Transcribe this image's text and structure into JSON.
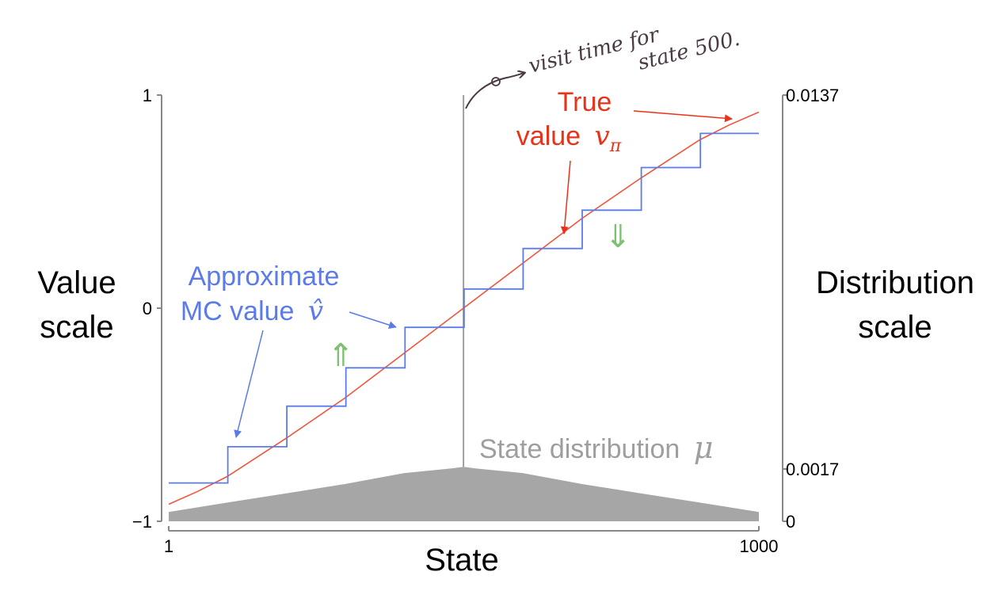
{
  "chart_data": {
    "type": "line",
    "title": "",
    "xlabel": "State",
    "ylabel": "Value scale",
    "y2label": "Distribution scale",
    "xlim": [
      1,
      1000
    ],
    "ylim": [
      -1,
      1
    ],
    "y2lim": [
      0,
      0.0137
    ],
    "x_ticks": [
      "1",
      "1000"
    ],
    "y_ticks": [
      "1",
      "0",
      "−1"
    ],
    "y2_ticks": [
      "0.0137",
      "0.0017",
      "0"
    ],
    "grid": false,
    "legend": "none",
    "series": [
      {
        "name": "True value vπ",
        "color": "#f0553c",
        "kind": "smooth line",
        "points": [
          [
            1,
            -0.92
          ],
          [
            50,
            -0.86
          ],
          [
            100,
            -0.79
          ],
          [
            200,
            -0.61
          ],
          [
            300,
            -0.42
          ],
          [
            400,
            -0.21
          ],
          [
            500,
            0.0
          ],
          [
            600,
            0.21
          ],
          [
            700,
            0.42
          ],
          [
            800,
            0.61
          ],
          [
            900,
            0.79
          ],
          [
            950,
            0.86
          ],
          [
            1000,
            0.92
          ]
        ]
      },
      {
        "name": "Approximate MC value ŵ",
        "color": "#5b7bea",
        "kind": "step (aggregated groups of 100 states)",
        "group_starts": [
          1,
          101,
          201,
          301,
          401,
          501,
          601,
          701,
          801,
          901
        ],
        "group_values": [
          -0.82,
          -0.65,
          -0.46,
          -0.28,
          -0.09,
          0.09,
          0.28,
          0.46,
          0.66,
          0.82
        ],
        "x_end": 1000
      },
      {
        "name": "State distribution μ",
        "color": "#a6a6a6",
        "kind": "filled area (right axis)",
        "points": [
          [
            1,
            0.0003
          ],
          [
            100,
            0.0006
          ],
          [
            200,
            0.0009
          ],
          [
            300,
            0.0012
          ],
          [
            400,
            0.00155
          ],
          [
            480,
            0.0017
          ],
          [
            500,
            0.00175
          ],
          [
            520,
            0.0017
          ],
          [
            600,
            0.00155
          ],
          [
            700,
            0.0012
          ],
          [
            800,
            0.0009
          ],
          [
            900,
            0.0006
          ],
          [
            1000,
            0.0003
          ]
        ]
      }
    ],
    "marker_line": {
      "x": 500,
      "color": "#9e9e9e"
    },
    "annotations": {
      "approx": {
        "line1": "Approximate",
        "line2": "MC value"
      },
      "true": {
        "line1": "True",
        "line2": "value"
      },
      "dist": {
        "text": "State distribution"
      },
      "hand_note": {
        "line1": "visit time for",
        "line2": "state 500."
      },
      "green_arrows": {
        "up": "⇑",
        "down": "⇓",
        "color": "#7cc070"
      }
    }
  }
}
